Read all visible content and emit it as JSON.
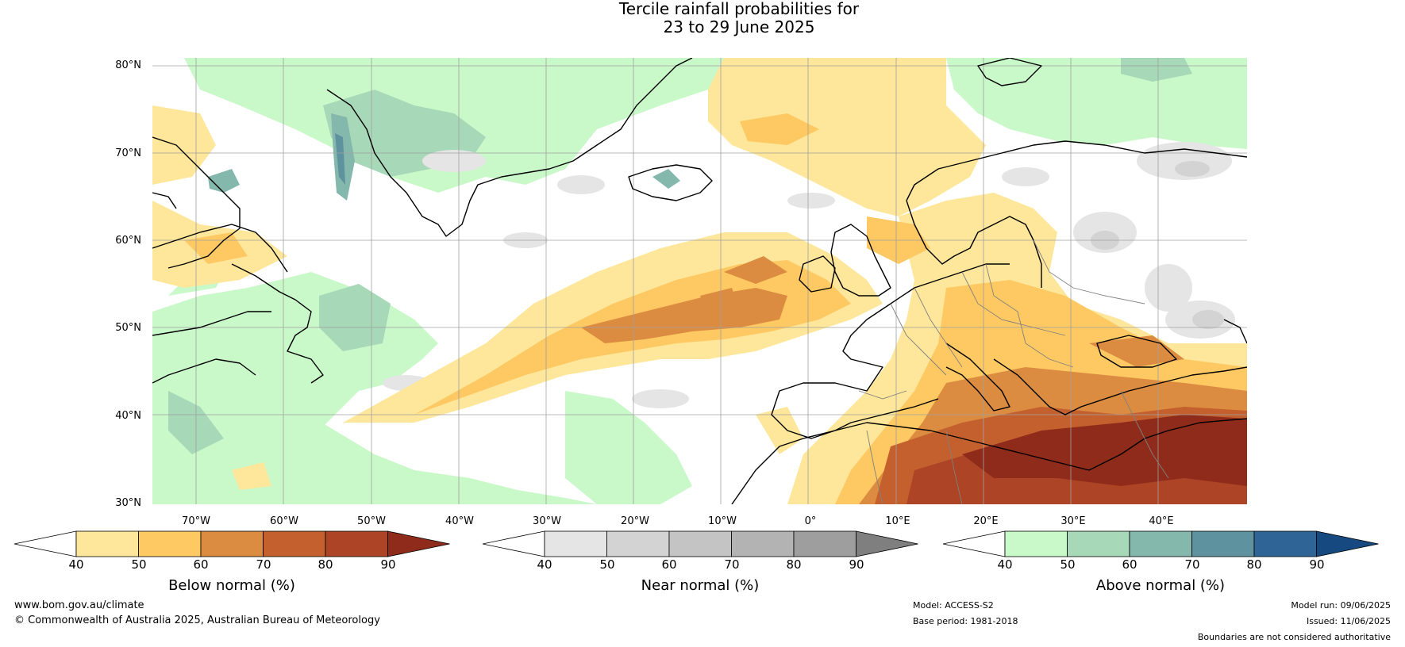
{
  "title_line1": "Tercile rainfall probabilities for",
  "title_line2": "23 to 29 June 2025",
  "lat_labels": [
    "80°N",
    "70°N",
    "60°N",
    "50°N",
    "40°N",
    "30°N"
  ],
  "lon_labels": [
    "70°W",
    "60°W",
    "50°W",
    "40°W",
    "30°W",
    "20°W",
    "10°W",
    "0°",
    "10°E",
    "20°E",
    "30°E",
    "40°E"
  ],
  "colorbars": [
    {
      "label": "Below normal (%)",
      "ticks": [
        "40",
        "50",
        "60",
        "70",
        "80",
        "90"
      ],
      "colors": [
        "#ffffff",
        "#fee79a",
        "#fec962",
        "#dc8c40",
        "#c4602e",
        "#ad4426",
        "#8e2b1a"
      ]
    },
    {
      "label": "Near normal (%)",
      "ticks": [
        "40",
        "50",
        "60",
        "70",
        "80",
        "90"
      ],
      "colors": [
        "#ffffff",
        "#e5e5e5",
        "#d3d3d3",
        "#c4c4c4",
        "#b3b3b3",
        "#9e9e9e",
        "#7f7f7f"
      ]
    },
    {
      "label": "Above normal (%)",
      "ticks": [
        "40",
        "50",
        "60",
        "70",
        "80",
        "90"
      ],
      "colors": [
        "#ffffff",
        "#c9f8c9",
        "#a7d8b8",
        "#85b8ac",
        "#5d929e",
        "#2f6497",
        "#15497f"
      ]
    }
  ],
  "footer": {
    "website": "www.bom.gov.au/climate",
    "copyright": "© Commonwealth of Australia 2025, Australian Bureau of Meteorology",
    "model": "Model: ACCESS-S2",
    "base_period": "Base period: 1981-2018",
    "model_run": "Model run: 09/06/2025",
    "issued": "Issued: 11/06/2025",
    "disclaimer": "Boundaries are not considered authoritative"
  }
}
